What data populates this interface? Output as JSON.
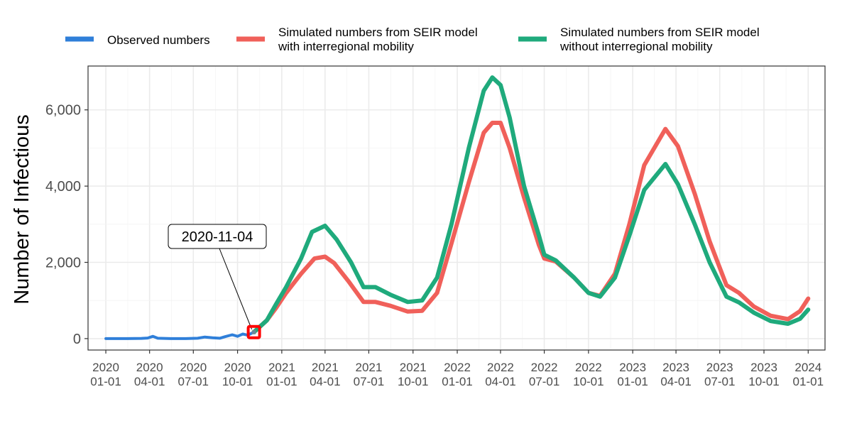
{
  "chart_data": {
    "type": "line",
    "ylabel": "Number of Infectious",
    "xlabel": "",
    "ylim": [
      -300,
      7150
    ],
    "xlim": [
      "2019-11-25",
      "2024-02-05"
    ],
    "y_ticks": [
      0,
      2000,
      4000,
      6000
    ],
    "y_tick_labels": [
      "0",
      "2,000",
      "4,000",
      "6,000"
    ],
    "x_ticks": [
      {
        "date": "2020-01-01",
        "year": "2020",
        "md": "01-01"
      },
      {
        "date": "2020-04-01",
        "year": "2020",
        "md": "04-01"
      },
      {
        "date": "2020-07-01",
        "year": "2020",
        "md": "07-01"
      },
      {
        "date": "2020-10-01",
        "year": "2020",
        "md": "10-01"
      },
      {
        "date": "2021-01-01",
        "year": "2021",
        "md": "01-01"
      },
      {
        "date": "2021-04-01",
        "year": "2021",
        "md": "04-01"
      },
      {
        "date": "2021-07-01",
        "year": "2021",
        "md": "07-01"
      },
      {
        "date": "2021-10-01",
        "year": "2021",
        "md": "10-01"
      },
      {
        "date": "2022-01-01",
        "year": "2022",
        "md": "01-01"
      },
      {
        "date": "2022-04-01",
        "year": "2022",
        "md": "04-01"
      },
      {
        "date": "2022-07-01",
        "year": "2022",
        "md": "07-01"
      },
      {
        "date": "2022-10-01",
        "year": "2022",
        "md": "10-01"
      },
      {
        "date": "2023-01-01",
        "year": "2023",
        "md": "01-01"
      },
      {
        "date": "2023-04-01",
        "year": "2023",
        "md": "04-01"
      },
      {
        "date": "2023-07-01",
        "year": "2023",
        "md": "07-01"
      },
      {
        "date": "2023-10-01",
        "year": "2023",
        "md": "10-01"
      },
      {
        "date": "2024-01-01",
        "year": "2024",
        "md": "01-01"
      }
    ],
    "grid": true,
    "legend_position": "top",
    "series": [
      {
        "name": "Observed numbers",
        "color": "#2f7fd9",
        "points": [
          [
            "2020-01-01",
            0
          ],
          [
            "2020-02-15",
            0
          ],
          [
            "2020-03-15",
            5
          ],
          [
            "2020-03-28",
            15
          ],
          [
            "2020-04-08",
            60
          ],
          [
            "2020-04-18",
            10
          ],
          [
            "2020-05-15",
            0
          ],
          [
            "2020-06-15",
            0
          ],
          [
            "2020-07-10",
            10
          ],
          [
            "2020-07-25",
            40
          ],
          [
            "2020-08-10",
            20
          ],
          [
            "2020-08-25",
            10
          ],
          [
            "2020-09-05",
            50
          ],
          [
            "2020-09-20",
            100
          ],
          [
            "2020-10-01",
            60
          ],
          [
            "2020-10-12",
            120
          ],
          [
            "2020-10-22",
            90
          ],
          [
            "2020-11-04",
            170
          ]
        ]
      },
      {
        "name": "Simulated numbers from SEIR model\nwith interregional mobility",
        "color": "#f0605a",
        "points": [
          [
            "2020-11-04",
            170
          ],
          [
            "2020-12-01",
            480
          ],
          [
            "2020-12-20",
            800
          ],
          [
            "2021-01-10",
            1200
          ],
          [
            "2021-02-10",
            1700
          ],
          [
            "2021-03-10",
            2100
          ],
          [
            "2021-04-01",
            2150
          ],
          [
            "2021-04-20",
            1980
          ],
          [
            "2021-05-20",
            1500
          ],
          [
            "2021-06-20",
            960
          ],
          [
            "2021-07-15",
            960
          ],
          [
            "2021-08-15",
            860
          ],
          [
            "2021-09-20",
            710
          ],
          [
            "2021-10-20",
            730
          ],
          [
            "2021-11-20",
            1200
          ],
          [
            "2021-12-20",
            2500
          ],
          [
            "2022-01-25",
            4100
          ],
          [
            "2022-02-25",
            5400
          ],
          [
            "2022-03-15",
            5660
          ],
          [
            "2022-04-01",
            5660
          ],
          [
            "2022-04-20",
            5000
          ],
          [
            "2022-05-20",
            3700
          ],
          [
            "2022-06-20",
            2450
          ],
          [
            "2022-07-01",
            2100
          ],
          [
            "2022-07-25",
            2020
          ],
          [
            "2022-09-01",
            1600
          ],
          [
            "2022-10-01",
            1200
          ],
          [
            "2022-10-25",
            1120
          ],
          [
            "2022-11-25",
            1700
          ],
          [
            "2022-12-25",
            3000
          ],
          [
            "2023-01-25",
            4550
          ],
          [
            "2023-03-10",
            5500
          ],
          [
            "2023-04-05",
            5050
          ],
          [
            "2023-05-10",
            3800
          ],
          [
            "2023-06-10",
            2550
          ],
          [
            "2023-07-15",
            1400
          ],
          [
            "2023-08-10",
            1200
          ],
          [
            "2023-09-10",
            840
          ],
          [
            "2023-10-15",
            600
          ],
          [
            "2023-11-20",
            510
          ],
          [
            "2023-12-15",
            720
          ],
          [
            "2024-01-01",
            1050
          ]
        ]
      },
      {
        "name": "Simulated numbers from SEIR model\nwithout interregional mobility",
        "color": "#1faa7c",
        "points": [
          [
            "2020-11-04",
            170
          ],
          [
            "2020-12-01",
            480
          ],
          [
            "2020-12-20",
            900
          ],
          [
            "2021-01-10",
            1350
          ],
          [
            "2021-02-10",
            2100
          ],
          [
            "2021-03-05",
            2800
          ],
          [
            "2021-04-01",
            2960
          ],
          [
            "2021-04-25",
            2600
          ],
          [
            "2021-05-25",
            2000
          ],
          [
            "2021-06-20",
            1350
          ],
          [
            "2021-07-15",
            1350
          ],
          [
            "2021-08-15",
            1150
          ],
          [
            "2021-09-20",
            960
          ],
          [
            "2021-10-20",
            1000
          ],
          [
            "2021-11-20",
            1600
          ],
          [
            "2021-12-20",
            3000
          ],
          [
            "2022-01-25",
            5000
          ],
          [
            "2022-02-25",
            6500
          ],
          [
            "2022-03-15",
            6850
          ],
          [
            "2022-04-01",
            6650
          ],
          [
            "2022-04-20",
            5800
          ],
          [
            "2022-05-20",
            4000
          ],
          [
            "2022-06-20",
            2700
          ],
          [
            "2022-07-01",
            2200
          ],
          [
            "2022-07-25",
            2050
          ],
          [
            "2022-09-01",
            1600
          ],
          [
            "2022-10-01",
            1200
          ],
          [
            "2022-10-25",
            1100
          ],
          [
            "2022-11-25",
            1600
          ],
          [
            "2022-12-25",
            2700
          ],
          [
            "2023-01-25",
            3900
          ],
          [
            "2023-03-10",
            4580
          ],
          [
            "2023-04-05",
            4050
          ],
          [
            "2023-05-10",
            3000
          ],
          [
            "2023-06-10",
            2000
          ],
          [
            "2023-07-15",
            1100
          ],
          [
            "2023-08-10",
            950
          ],
          [
            "2023-09-10",
            680
          ],
          [
            "2023-10-15",
            460
          ],
          [
            "2023-11-20",
            390
          ],
          [
            "2023-12-15",
            520
          ],
          [
            "2024-01-01",
            760
          ]
        ]
      }
    ],
    "annotation": {
      "text": "2020-11-04",
      "date": "2020-11-04",
      "value": 170,
      "marker_color": "#ff0000"
    }
  }
}
